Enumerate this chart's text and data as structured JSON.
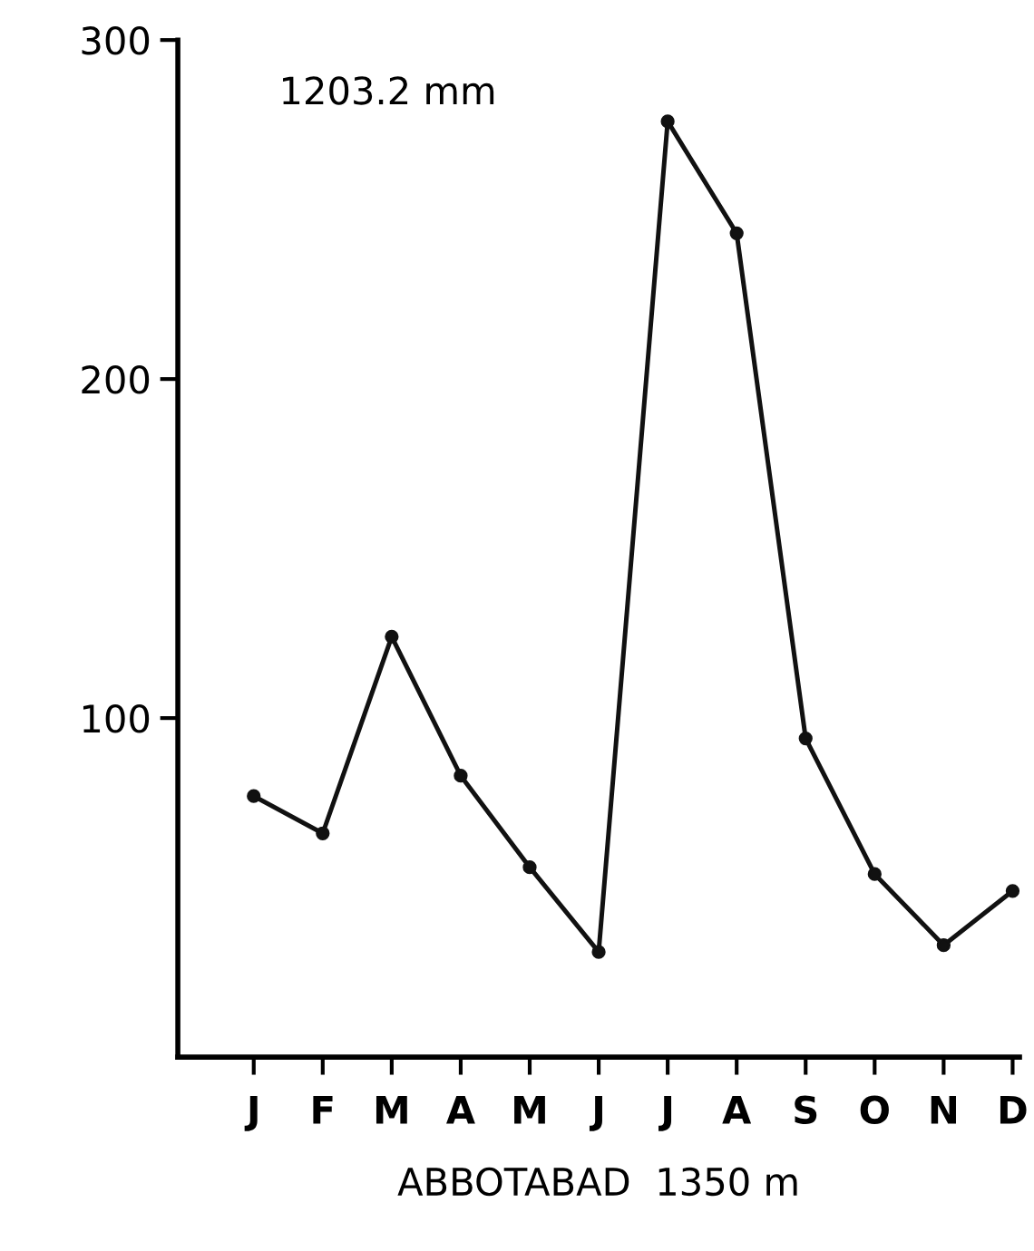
{
  "chart_data": {
    "type": "line",
    "categories": [
      "J",
      "F",
      "M",
      "A",
      "M",
      "J",
      "J",
      "A",
      "S",
      "O",
      "N",
      "D"
    ],
    "values": [
      77,
      66,
      124,
      83,
      56,
      31,
      276,
      243,
      94,
      54,
      33,
      49
    ],
    "color": "#111111",
    "marker": "circle",
    "line_style": "solid",
    "ylim": [
      0,
      300
    ],
    "yticks": [
      100,
      200,
      300
    ],
    "xlabel": "ABBOTABAD  1350 m",
    "annotations": [
      "1203.2 mm"
    ],
    "grid": false,
    "legend": false
  }
}
